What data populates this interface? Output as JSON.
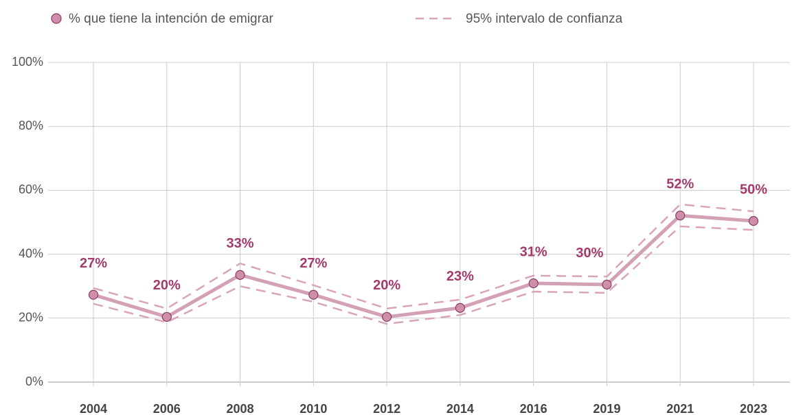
{
  "chart_data": {
    "type": "line",
    "categories": [
      "2004",
      "2006",
      "2008",
      "2010",
      "2012",
      "2014",
      "2016",
      "2019",
      "2021",
      "2023"
    ],
    "series": [
      {
        "name": "% que tiene la intención de emigrar",
        "color": "#d4a0b6",
        "marker_color": "#cf8fab",
        "values": [
          27.3,
          20.4,
          33.5,
          27.3,
          20.4,
          23.2,
          30.9,
          30.5,
          52.1,
          50.4
        ],
        "value_labels": [
          "27%",
          "20%",
          "33%",
          "27%",
          "20%",
          "23%",
          "31%",
          "30%",
          "52%",
          "50%"
        ]
      }
    ],
    "ci": {
      "name": "95% intervalo de confianza",
      "color": "#d9a4ba",
      "upper": [
        29.4,
        23,
        37.1,
        30.3,
        23,
        25.8,
        33.3,
        33,
        55.6,
        53.4
      ],
      "lower": [
        24.5,
        18.7,
        30,
        25.1,
        18.2,
        21,
        28.3,
        27.9,
        48.7,
        47.6
      ]
    },
    "label_color": "#a33a6b",
    "ylim": [
      0,
      100
    ],
    "yticks": [
      {
        "value": 0,
        "label": "0%"
      },
      {
        "value": 20,
        "label": "20%"
      },
      {
        "value": 40,
        "label": "40%"
      },
      {
        "value": 60,
        "label": "60%"
      },
      {
        "value": 80,
        "label": "80%"
      },
      {
        "value": 100,
        "label": "100%"
      }
    ],
    "grid": true,
    "legend": "top"
  }
}
